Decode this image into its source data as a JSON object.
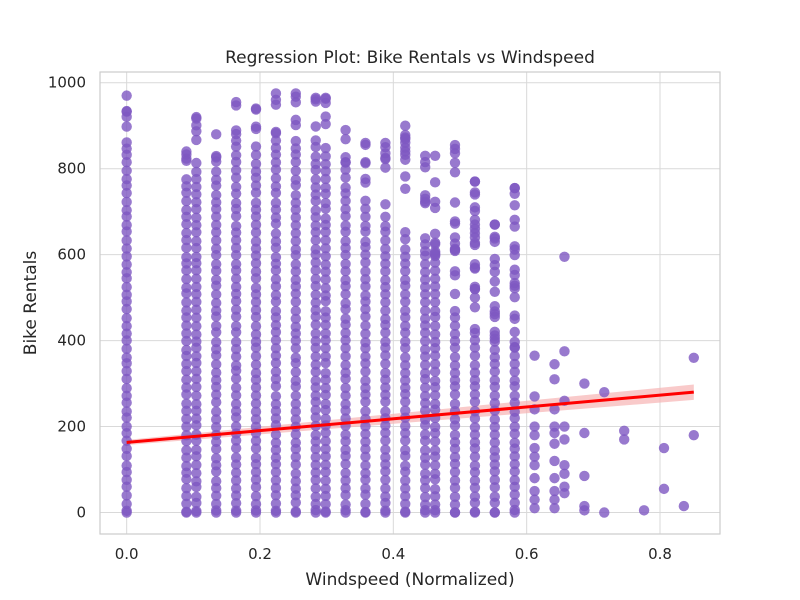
{
  "chart_data": {
    "type": "scatter",
    "title": "Regression Plot: Bike Rentals vs Windspeed",
    "xlabel": "Windspeed (Normalized)",
    "ylabel": "Bike Rentals",
    "xlim": [
      -0.04,
      0.89
    ],
    "ylim": [
      -50,
      1025
    ],
    "x_ticks": [
      "0.0",
      "0.2",
      "0.4",
      "0.6",
      "0.8"
    ],
    "y_ticks": [
      "0",
      "200",
      "400",
      "600",
      "800",
      "1000"
    ],
    "grid": true,
    "background": "#ffffff",
    "colors": {
      "points": "#7e57c2",
      "regression_line": "#ff0000",
      "confidence_band": "#f6b4b4",
      "grid": "#d9d9d9",
      "frame": "#cccccc"
    },
    "x_levels": [
      0.0,
      0.0896,
      0.1045,
      0.1343,
      0.1642,
      0.194,
      0.2239,
      0.2537,
      0.2836,
      0.2985,
      0.3284,
      0.3582,
      0.3881,
      0.4179,
      0.4478,
      0.4627,
      0.4925,
      0.5224,
      0.5522,
      0.5821,
      0.6119,
      0.6418,
      0.6567,
      0.6866,
      0.7164,
      0.7463,
      0.7761,
      0.806,
      0.8358,
      0.8507
    ],
    "column_top": [
      970,
      840,
      920,
      880,
      955,
      940,
      975,
      975,
      965,
      965,
      890,
      860,
      860,
      900,
      830,
      830,
      855,
      770,
      670,
      755,
      365,
      345,
      595,
      300,
      280,
      190,
      5,
      150,
      15,
      360
    ],
    "column_dense_max": [
      850,
      790,
      810,
      780,
      870,
      860,
      880,
      880,
      880,
      860,
      800,
      730,
      700,
      650,
      600,
      600,
      450,
      420,
      400,
      380,
      0,
      0,
      0,
      0,
      0,
      0,
      0,
      0,
      0,
      0
    ],
    "scatter_points": [
      {
        "x": 0.5224,
        "y": 770
      },
      {
        "x": 0.5224,
        "y": 740
      },
      {
        "x": 0.5224,
        "y": 710
      },
      {
        "x": 0.5224,
        "y": 670
      },
      {
        "x": 0.5224,
        "y": 640
      },
      {
        "x": 0.5224,
        "y": 570
      },
      {
        "x": 0.5224,
        "y": 520
      },
      {
        "x": 0.5522,
        "y": 670
      },
      {
        "x": 0.5522,
        "y": 590
      },
      {
        "x": 0.5522,
        "y": 560
      },
      {
        "x": 0.5522,
        "y": 480
      },
      {
        "x": 0.5522,
        "y": 455
      },
      {
        "x": 0.5821,
        "y": 755
      },
      {
        "x": 0.5821,
        "y": 565
      },
      {
        "x": 0.5821,
        "y": 420
      },
      {
        "x": 0.5821,
        "y": 385
      },
      {
        "x": 0.6119,
        "y": 365
      },
      {
        "x": 0.6119,
        "y": 270
      },
      {
        "x": 0.6119,
        "y": 240
      },
      {
        "x": 0.6119,
        "y": 200
      },
      {
        "x": 0.6119,
        "y": 180
      },
      {
        "x": 0.6119,
        "y": 150
      },
      {
        "x": 0.6119,
        "y": 130
      },
      {
        "x": 0.6119,
        "y": 110
      },
      {
        "x": 0.6119,
        "y": 80
      },
      {
        "x": 0.6119,
        "y": 50
      },
      {
        "x": 0.6119,
        "y": 30
      },
      {
        "x": 0.6119,
        "y": 10
      },
      {
        "x": 0.6418,
        "y": 345
      },
      {
        "x": 0.6418,
        "y": 310
      },
      {
        "x": 0.6418,
        "y": 240
      },
      {
        "x": 0.6418,
        "y": 200
      },
      {
        "x": 0.6418,
        "y": 185
      },
      {
        "x": 0.6418,
        "y": 160
      },
      {
        "x": 0.6418,
        "y": 120
      },
      {
        "x": 0.6418,
        "y": 80
      },
      {
        "x": 0.6418,
        "y": 50
      },
      {
        "x": 0.6418,
        "y": 30
      },
      {
        "x": 0.6418,
        "y": 10
      },
      {
        "x": 0.6567,
        "y": 595
      },
      {
        "x": 0.6567,
        "y": 375
      },
      {
        "x": 0.6567,
        "y": 260
      },
      {
        "x": 0.6567,
        "y": 200
      },
      {
        "x": 0.6567,
        "y": 170
      },
      {
        "x": 0.6567,
        "y": 110
      },
      {
        "x": 0.6567,
        "y": 90
      },
      {
        "x": 0.6567,
        "y": 60
      },
      {
        "x": 0.6567,
        "y": 45
      },
      {
        "x": 0.6866,
        "y": 300
      },
      {
        "x": 0.6866,
        "y": 185
      },
      {
        "x": 0.6866,
        "y": 85
      },
      {
        "x": 0.6866,
        "y": 15
      },
      {
        "x": 0.6866,
        "y": 5
      },
      {
        "x": 0.7164,
        "y": 280
      },
      {
        "x": 0.7164,
        "y": 0
      },
      {
        "x": 0.7463,
        "y": 190
      },
      {
        "x": 0.7463,
        "y": 170
      },
      {
        "x": 0.7761,
        "y": 5
      },
      {
        "x": 0.806,
        "y": 150
      },
      {
        "x": 0.806,
        "y": 55
      },
      {
        "x": 0.8358,
        "y": 15
      },
      {
        "x": 0.8507,
        "y": 360
      },
      {
        "x": 0.8507,
        "y": 180
      }
    ],
    "regression": {
      "x": [
        0.0,
        0.8507
      ],
      "y": [
        163,
        280
      ],
      "band_halfwidth": [
        6,
        18
      ]
    }
  }
}
